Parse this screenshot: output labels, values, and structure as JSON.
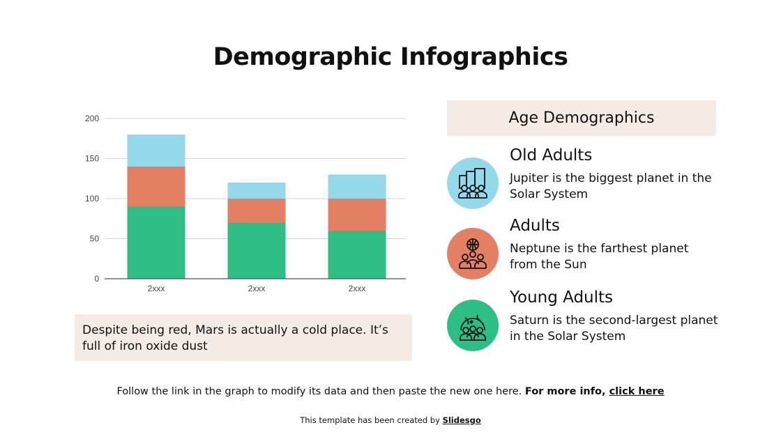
{
  "title": "Demographic Infographics",
  "chart_data": {
    "type": "bar",
    "stacked": true,
    "categories": [
      "2xxx",
      "2xxx",
      "2xxx"
    ],
    "series": [
      {
        "values": [
          90,
          70,
          60
        ],
        "color": "#2ebd85"
      },
      {
        "values": [
          50,
          30,
          40
        ],
        "color": "#e37f63"
      },
      {
        "values": [
          40,
          20,
          30
        ],
        "color": "#93d9ea"
      }
    ],
    "ylim": [
      0,
      200
    ],
    "yticks": [
      0,
      50,
      100,
      150,
      200
    ],
    "grid": true
  },
  "note": "Despite being red, Mars is actually a cold place. It’s full of iron oxide dust",
  "age_demographics": {
    "heading": "Age Demographics",
    "items": [
      {
        "title": "Old Adults",
        "text": "Jupiter is the biggest planet in the Solar System",
        "icon": "city-people-icon",
        "color": "#93d9ea"
      },
      {
        "title": "Adults",
        "text": "Neptune is the farthest planet from the Sun",
        "icon": "globe-people-icon",
        "color": "#e37f63"
      },
      {
        "title": "Young Adults",
        "text": "Saturn is the second-largest planet in the Solar System",
        "icon": "earth-people-icon",
        "color": "#2ebd85"
      }
    ]
  },
  "footer": {
    "text": "Follow the link in the graph to modify its data and then paste the new one here. ",
    "bold": "For more info, ",
    "link": "click here"
  },
  "credit": {
    "text": "This template has been created by ",
    "link": "Slidesgo"
  }
}
